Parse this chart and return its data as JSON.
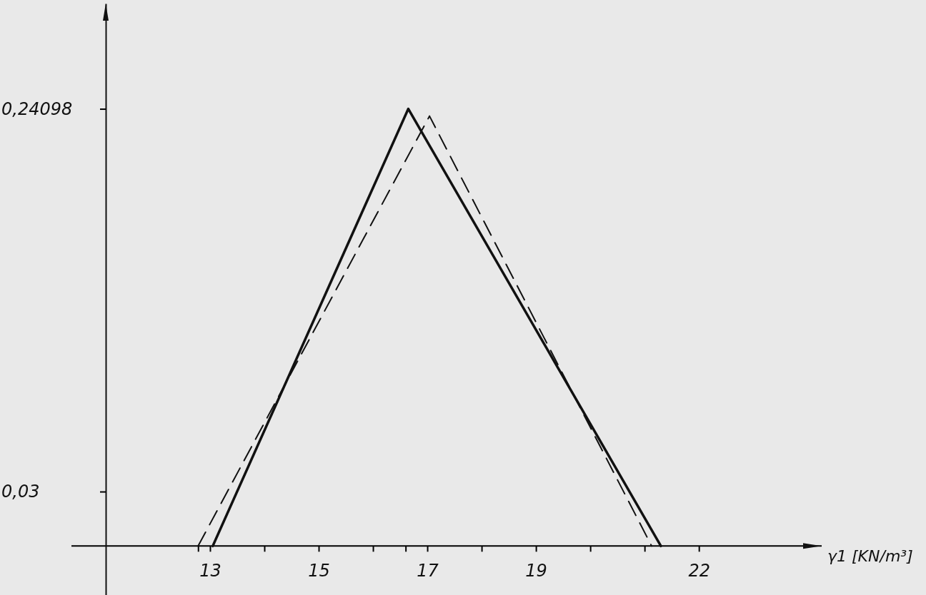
{
  "chart_data": {
    "type": "line",
    "xlabel": "γ1 [KN/m³]",
    "xlim": [
      11.08,
      24.26
    ],
    "ylim": [
      -0.027,
      0.299
    ],
    "xticks": [
      {
        "value": 12.78,
        "label": null
      },
      13,
      {
        "value": 14,
        "label": null
      },
      15,
      {
        "value": 16,
        "label": null
      },
      {
        "value": 16.6,
        "label": null
      },
      17,
      {
        "value": 18,
        "label": null
      },
      19,
      {
        "value": 20,
        "label": null
      },
      {
        "value": 21,
        "label": null
      },
      22
    ],
    "yticks": [
      {
        "value": 0.03,
        "label": "0,03"
      },
      {
        "value": 0.24098,
        "label": "0,24098"
      }
    ],
    "series": [
      {
        "color": "#111111",
        "line_style": "solid",
        "x": [
          13.05,
          16.65,
          21.3
        ],
        "values": [
          0,
          0.24098,
          0
        ]
      },
      {
        "color": "#111111",
        "line_style": "dashed",
        "x": [
          12.78,
          17.04,
          21.13
        ],
        "values": [
          0,
          0.237,
          0
        ]
      }
    ]
  }
}
